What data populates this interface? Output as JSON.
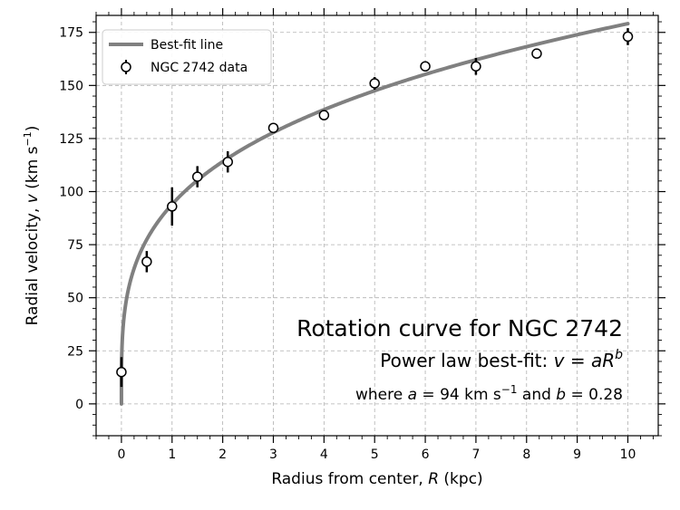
{
  "chart_data": {
    "type": "scatter",
    "xlabel": {
      "prefix": "Radius from center, ",
      "var": "R",
      "suffix": " (kpc)"
    },
    "ylabel": {
      "prefix": "Radial velocity, ",
      "var": "v",
      "suffix": " (km s",
      "sup": "−1",
      "close": ")"
    },
    "xlim": [
      -0.5,
      10.6
    ],
    "ylim": [
      -15,
      183
    ],
    "x_ticks": [
      "0",
      "1",
      "2",
      "3",
      "4",
      "5",
      "6",
      "7",
      "8",
      "9",
      "10"
    ],
    "y_ticks": [
      "0",
      "25",
      "50",
      "75",
      "100",
      "125",
      "150",
      "175"
    ],
    "x_tick_values": [
      0,
      1,
      2,
      3,
      4,
      5,
      6,
      7,
      8,
      9,
      10
    ],
    "y_tick_values": [
      0,
      25,
      50,
      75,
      100,
      125,
      150,
      175
    ],
    "x_minor_step": 0.25,
    "y_minor_step": 5,
    "grid": true,
    "legend_position": "upper-left",
    "series": [
      {
        "name": "Best-fit line",
        "kind": "line",
        "color": "#808080",
        "model": {
          "form": "power",
          "a": 94,
          "b": 0.28
        },
        "x_range": [
          0,
          10
        ]
      },
      {
        "name": "NGC 2742 data",
        "kind": "errorbar",
        "color": "#000000",
        "marker": "open-circle",
        "x": [
          0,
          0.5,
          1,
          1.5,
          2.1,
          3,
          4,
          5,
          6,
          7,
          8.2,
          10
        ],
        "y": [
          15,
          67,
          93,
          107,
          114,
          130,
          136,
          151,
          159,
          159,
          165,
          173
        ],
        "yerr": [
          7,
          5,
          9,
          5,
          5,
          2,
          2,
          3,
          2,
          4,
          2,
          4
        ]
      }
    ],
    "annotations": {
      "title": "Rotation curve for NGC 2742",
      "line2_prefix": "Power law best-fit: ",
      "line2_eq_lhs": "v",
      "line2_eq_mid": " = ",
      "line2_eq_rhs": "aR",
      "line2_eq_sup": "b",
      "line3_where": "where ",
      "line3_a_var": "a",
      "line3_a_eq": " = 94 km s",
      "line3_a_sup": "−1",
      "line3_and": " and ",
      "line3_b_var": "b",
      "line3_b_eq": " = 0.28"
    }
  }
}
